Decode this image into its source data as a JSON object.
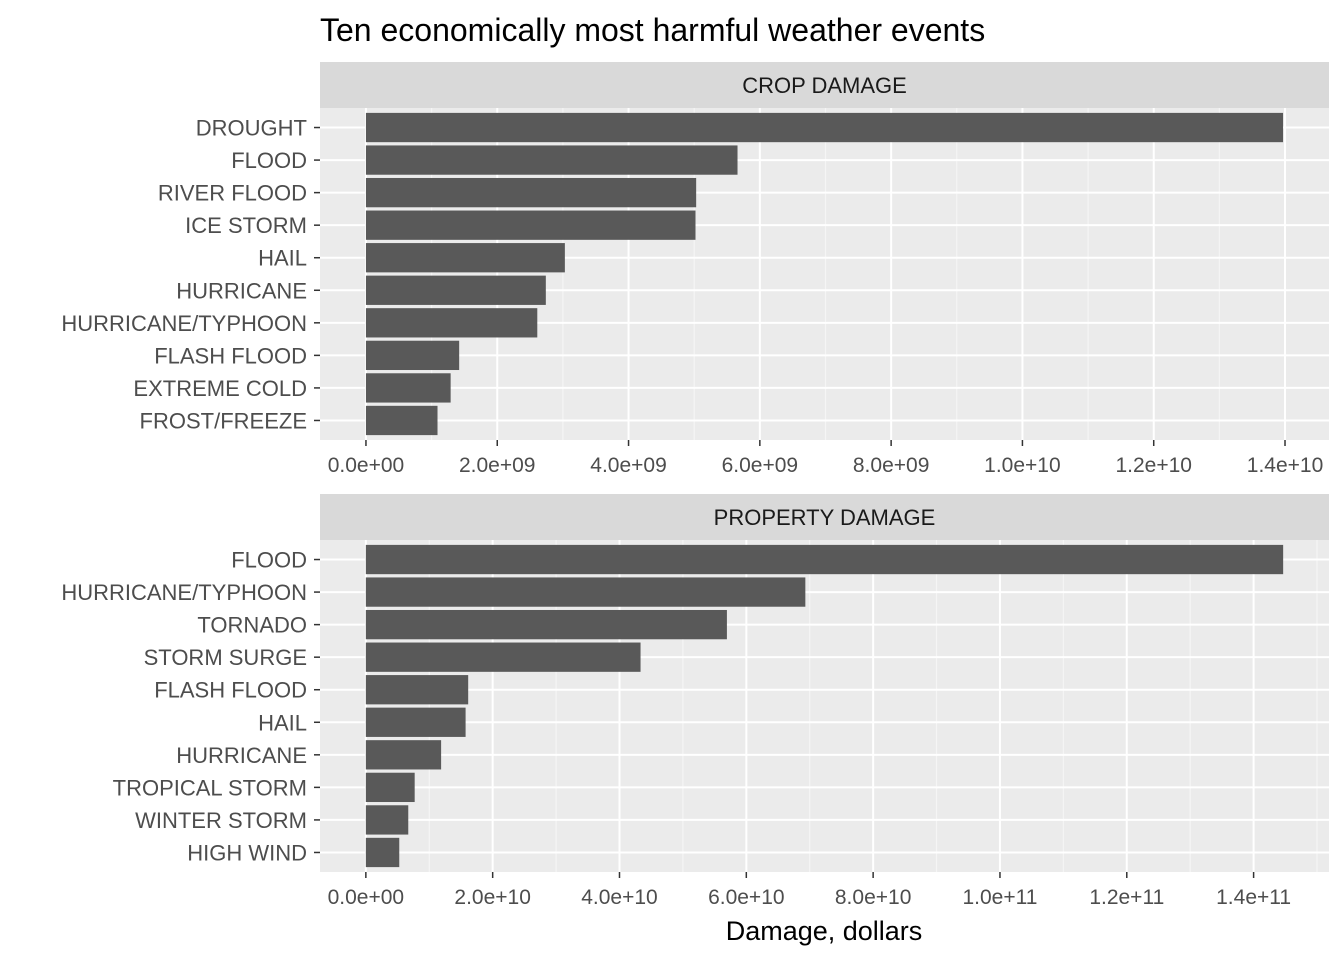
{
  "chart_data": {
    "type": "bar",
    "orientation": "horizontal",
    "title": "Ten economically most harmful weather events",
    "xlabel": "Damage, dollars",
    "ylabel": "",
    "grid": true,
    "colors": {
      "bar": "#595959",
      "panel_bg": "#ebebeb",
      "strip_bg": "#d9d9d9",
      "grid_major": "#ffffff",
      "grid_minor": "#f5f5f5",
      "text": "#4d4d4d"
    },
    "panels": [
      {
        "strip_label": "CROP DAMAGE",
        "categories": [
          "DROUGHT",
          "FLOOD",
          "RIVER FLOOD",
          "ICE STORM",
          "HAIL",
          "HURRICANE",
          "HURRICANE/TYPHOON",
          "FLASH FLOOD",
          "EXTREME COLD",
          "FROST/FREEZE"
        ],
        "values": [
          13970000000,
          5660000000,
          5030000000,
          5020000000,
          3030000000,
          2740000000,
          2610000000,
          1420000000,
          1290000000,
          1090000000
        ],
        "xlim": [
          -700000000,
          14670000000
        ],
        "ticks": [
          0,
          2000000000,
          4000000000,
          6000000000,
          8000000000,
          10000000000,
          12000000000,
          14000000000
        ],
        "tick_labels": [
          "0.0e+00",
          "2.0e+09",
          "4.0e+09",
          "6.0e+09",
          "8.0e+09",
          "1.0e+10",
          "1.2e+10",
          "1.4e+10"
        ]
      },
      {
        "strip_label": "PROPERTY DAMAGE",
        "categories": [
          "FLOOD",
          "HURRICANE/TYPHOON",
          "TORNADO",
          "STORM SURGE",
          "FLASH FLOOD",
          "HAIL",
          "HURRICANE",
          "TROPICAL STORM",
          "WINTER STORM",
          "HIGH WIND"
        ],
        "values": [
          144660000000,
          69310000000,
          56940000000,
          43320000000,
          16140000000,
          15730000000,
          11870000000,
          7700000000,
          6690000000,
          5270000000
        ],
        "xlim": [
          -7230000000,
          151890000000
        ],
        "ticks": [
          0,
          20000000000,
          40000000000,
          60000000000,
          80000000000,
          100000000000,
          120000000000,
          140000000000
        ],
        "tick_labels": [
          "0.0e+00",
          "2.0e+10",
          "4.0e+10",
          "6.0e+10",
          "8.0e+10",
          "1.0e+11",
          "1.2e+11",
          "1.4e+11"
        ]
      }
    ]
  }
}
